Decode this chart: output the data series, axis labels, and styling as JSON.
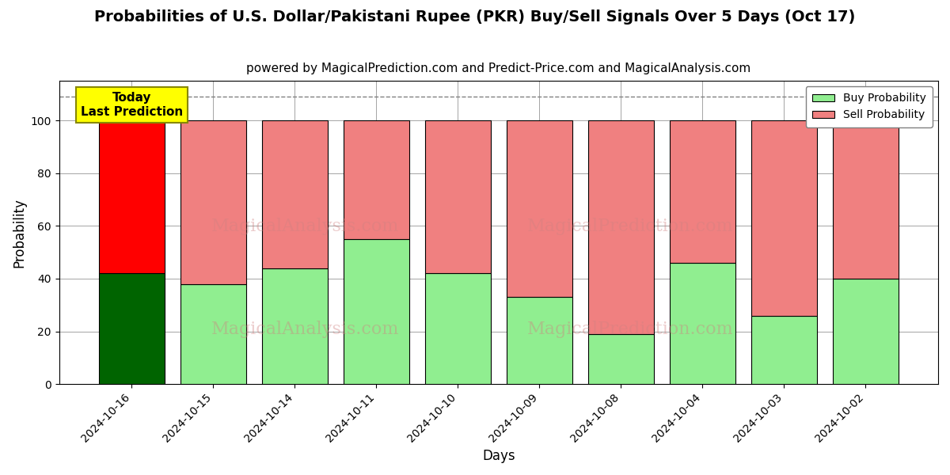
{
  "title": "Probabilities of U.S. Dollar/Pakistani Rupee (PKR) Buy/Sell Signals Over 5 Days (Oct 17)",
  "subtitle": "powered by MagicalPrediction.com and Predict-Price.com and MagicalAnalysis.com",
  "xlabel": "Days",
  "ylabel": "Probability",
  "watermark_line1": "MagicalAnalysis.com",
  "watermark_line2": "MagicalPrediction.com",
  "categories": [
    "2024-10-16",
    "2024-10-15",
    "2024-10-14",
    "2024-10-11",
    "2024-10-10",
    "2024-10-09",
    "2024-10-08",
    "2024-10-04",
    "2024-10-03",
    "2024-10-02"
  ],
  "buy_values": [
    42,
    38,
    44,
    55,
    42,
    33,
    19,
    46,
    26,
    40
  ],
  "sell_values": [
    58,
    62,
    56,
    45,
    58,
    67,
    81,
    54,
    74,
    60
  ],
  "buy_color_today": "#006400",
  "sell_color_today": "#ff0000",
  "buy_color_normal": "#90EE90",
  "sell_color_normal": "#F08080",
  "bar_edge_color": "#000000",
  "ylim": [
    0,
    115
  ],
  "yticks": [
    0,
    20,
    40,
    60,
    80,
    100
  ],
  "dashed_line_y": 109,
  "annotation_text": "Today\nLast Prediction",
  "annotation_bg": "#ffff00",
  "legend_buy_label": "Buy Probability",
  "legend_sell_label": "Sell Probability",
  "title_fontsize": 14,
  "subtitle_fontsize": 11,
  "label_fontsize": 12,
  "tick_fontsize": 10,
  "figsize": [
    12,
    6
  ],
  "dpi": 100
}
